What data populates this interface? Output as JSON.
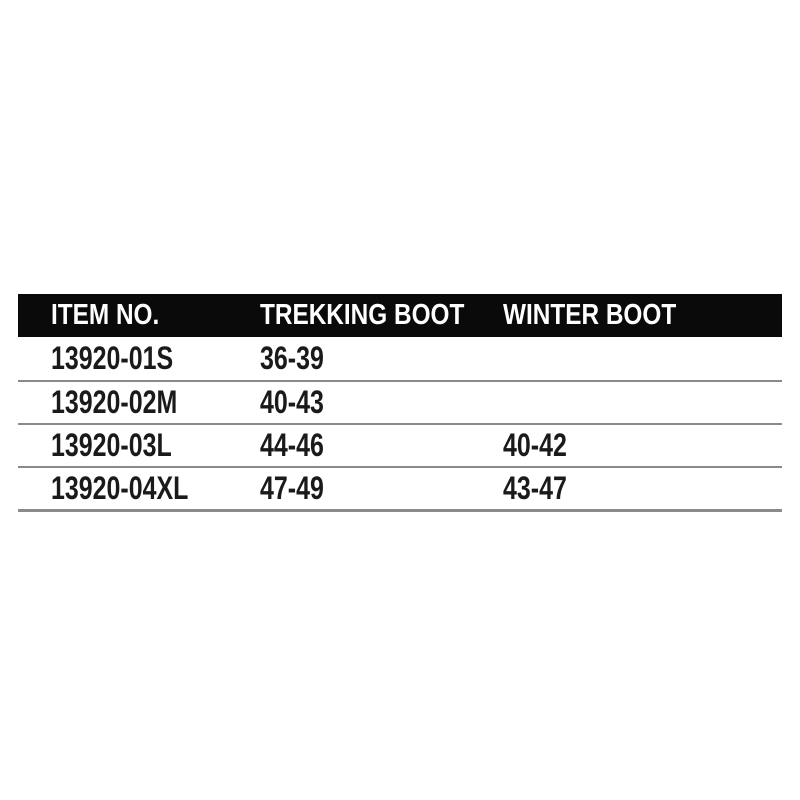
{
  "chart_data": {
    "type": "table",
    "title": "",
    "columns": [
      "ITEM NO.",
      "TREKKING BOOT",
      "WINTER BOOT"
    ],
    "rows": [
      [
        "13920-01S",
        "36-39",
        ""
      ],
      [
        "13920-02M",
        "40-43",
        ""
      ],
      [
        "13920-03L",
        "44-46",
        "40-42"
      ],
      [
        "13920-04XL",
        "47-49",
        "43-47"
      ]
    ],
    "layout": {
      "grid": "horizontal row separators only",
      "header_style": "solid black bar, white text",
      "legend": "none"
    }
  },
  "colors": {
    "page_background": "#ffffff",
    "header_background": "#0a0a0a",
    "header_text": "#ffffff",
    "body_text": "#1a1a1a",
    "divider": "#8a8a8a"
  }
}
